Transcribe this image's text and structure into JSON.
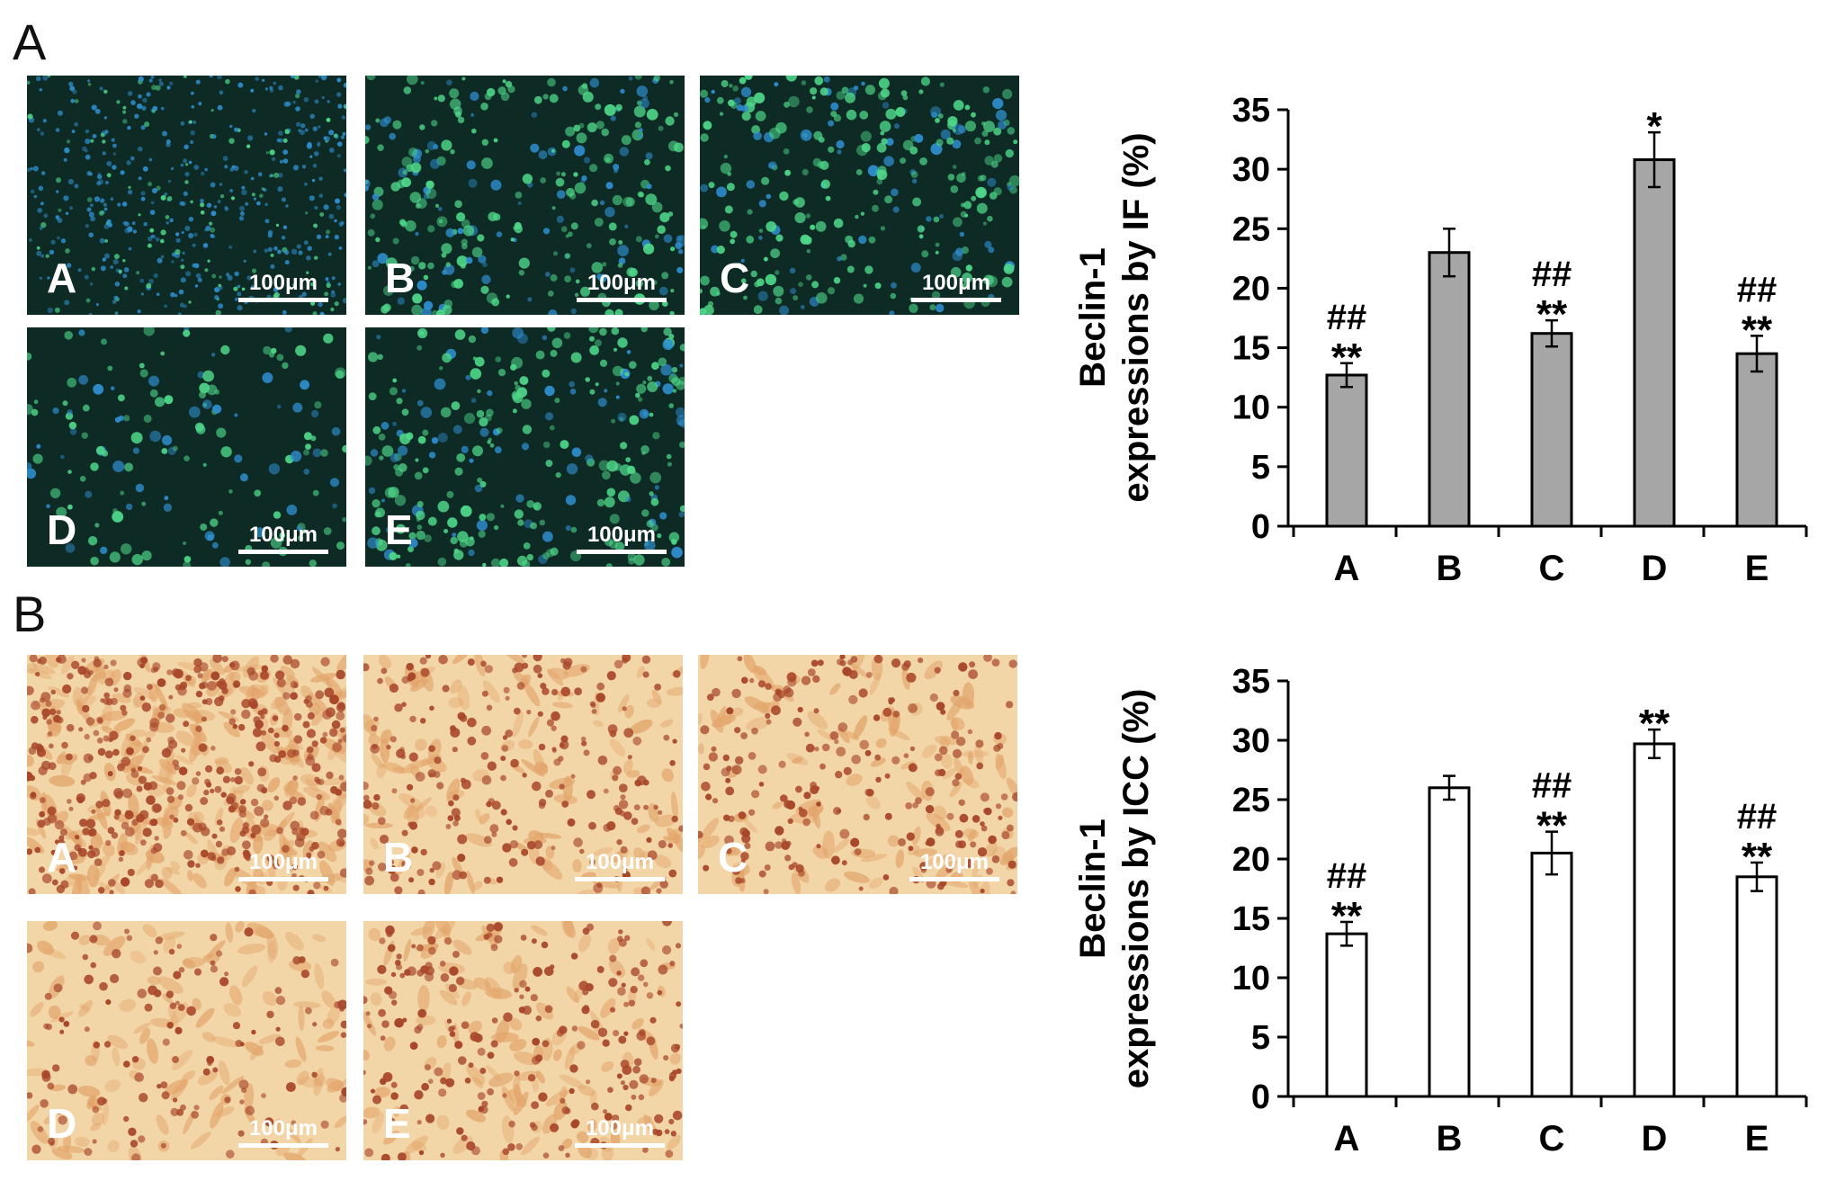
{
  "panels": [
    {
      "letter": "A",
      "image_style": "fluorescence"
    },
    {
      "letter": "B",
      "image_style": "brightfield"
    }
  ],
  "micrographs": {
    "labels": [
      "A",
      "B",
      "C",
      "D",
      "E"
    ],
    "scale_bar": "100μm",
    "fluorescence_colors": {
      "background": "#0d2a24",
      "cell": "#4fd88a",
      "nucleus": "#2f8fd0"
    },
    "brightfield_colors": {
      "background": "#f3d6a8",
      "cell": "#a8472a",
      "stroma": "#e2a46a"
    }
  },
  "chart_data": [
    {
      "type": "bar",
      "ylabel_line1": "Beclin-1",
      "ylabel_line2": "expressions by IF (%)",
      "categories": [
        "A",
        "B",
        "C",
        "D",
        "E"
      ],
      "values": [
        12.7,
        23.0,
        16.2,
        30.8,
        14.5
      ],
      "errors": [
        1.0,
        2.0,
        1.1,
        2.3,
        1.5
      ],
      "annotations": [
        {
          "category": "A",
          "top": "##",
          "bottom": "**"
        },
        {
          "category": "C",
          "top": "##",
          "bottom": "**"
        },
        {
          "category": "D",
          "top": "",
          "bottom": "*"
        },
        {
          "category": "E",
          "top": "##",
          "bottom": "**"
        }
      ],
      "ylim": [
        0,
        35
      ],
      "yticks": [
        "0",
        "5",
        "10",
        "15",
        "20",
        "25",
        "30",
        "35"
      ],
      "bar_color": "#a6a6a6",
      "grid": false
    },
    {
      "type": "bar",
      "ylabel_line1": "Beclin-1",
      "ylabel_line2": "expressions by ICC (%)",
      "categories": [
        "A",
        "B",
        "C",
        "D",
        "E"
      ],
      "values": [
        13.7,
        26.0,
        20.5,
        29.7,
        18.5
      ],
      "errors": [
        1.0,
        1.0,
        1.8,
        1.2,
        1.2
      ],
      "annotations": [
        {
          "category": "A",
          "top": "##",
          "bottom": "**"
        },
        {
          "category": "C",
          "top": "##",
          "bottom": "**"
        },
        {
          "category": "D",
          "top": "",
          "bottom": "**"
        },
        {
          "category": "E",
          "top": "##",
          "bottom": "**"
        }
      ],
      "ylim": [
        0,
        35
      ],
      "yticks": [
        "0",
        "5",
        "10",
        "15",
        "20",
        "25",
        "30",
        "35"
      ],
      "bar_color": "#ffffff",
      "grid": false
    }
  ]
}
